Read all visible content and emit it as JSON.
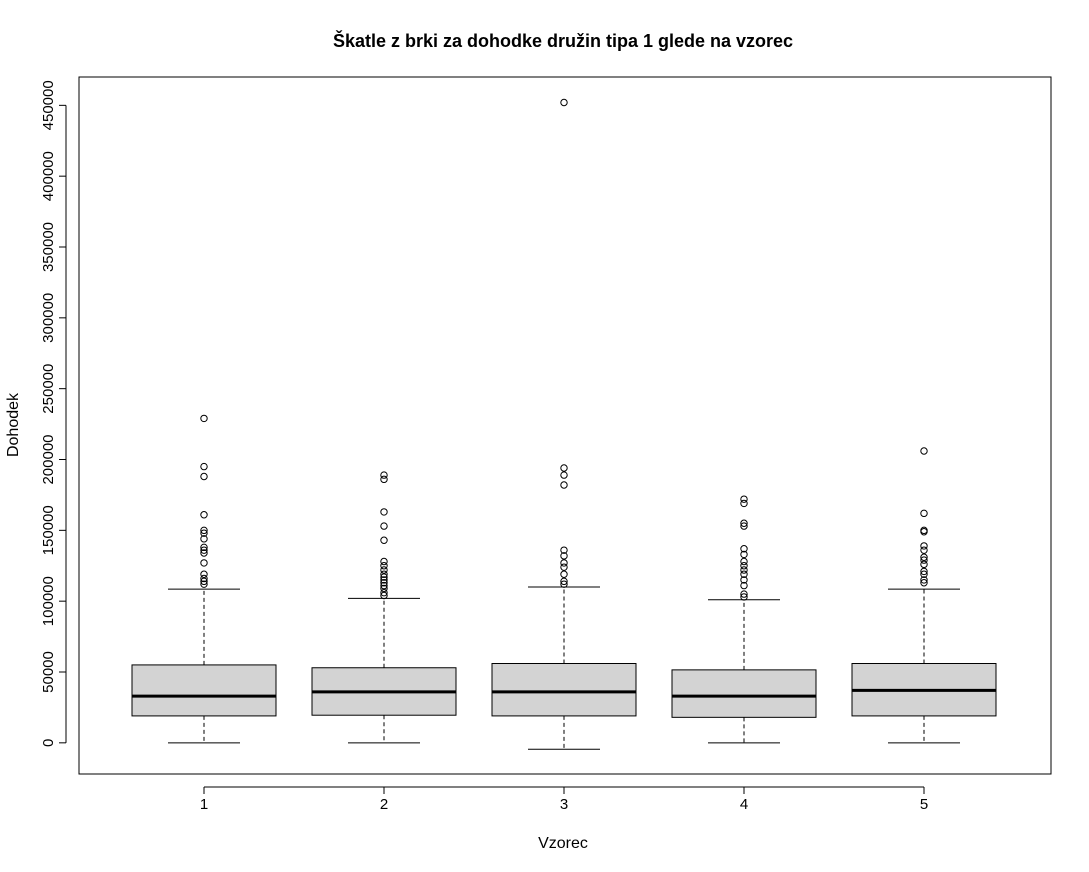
{
  "chart_data": {
    "type": "boxplot",
    "title": "Škatle z brki za dohodke družin tipa 1 glede na vzorec",
    "xlabel": "Vzorec",
    "ylabel": "Dohodek",
    "ylim": [
      -22000,
      470000
    ],
    "y_ticks": [
      "0",
      "50000",
      "100000",
      "150000",
      "200000",
      "250000",
      "300000",
      "350000",
      "400000",
      "450000"
    ],
    "categories": [
      "1",
      "2",
      "3",
      "4",
      "5"
    ],
    "box_color": "#d3d3d3",
    "boxes": [
      {
        "label": "1",
        "lower_whisker": 0,
        "q1": 19000,
        "median": 33000,
        "q3": 55000,
        "upper_whisker": 108500,
        "outliers": [
          229000,
          195000,
          188000,
          161000,
          150000,
          148000,
          144000,
          138000,
          136000,
          134000,
          127000,
          119000,
          116000,
          114000,
          112000
        ]
      },
      {
        "label": "2",
        "lower_whisker": 0,
        "q1": 19500,
        "median": 36000,
        "q3": 53000,
        "upper_whisker": 102000,
        "outliers": [
          189000,
          186000,
          163000,
          153000,
          143000,
          128000,
          125000,
          122000,
          119000,
          117000,
          115000,
          113000,
          111000,
          109000,
          106000,
          104000
        ]
      },
      {
        "label": "3",
        "lower_whisker": -4500,
        "q1": 19000,
        "median": 36000,
        "q3": 56000,
        "upper_whisker": 110000,
        "outliers": [
          452000,
          194000,
          189000,
          182000,
          136000,
          132000,
          127000,
          124000,
          119000,
          114000,
          112000
        ]
      },
      {
        "label": "4",
        "lower_whisker": 0,
        "q1": 18000,
        "median": 33000,
        "q3": 51500,
        "upper_whisker": 101000,
        "outliers": [
          172000,
          169000,
          155000,
          153000,
          137000,
          133000,
          128000,
          125000,
          122000,
          119000,
          115000,
          111000,
          105000,
          103000
        ]
      },
      {
        "label": "5",
        "lower_whisker": 0,
        "q1": 19000,
        "median": 37000,
        "q3": 56000,
        "upper_whisker": 108500,
        "outliers": [
          206000,
          162000,
          150000,
          149000,
          139000,
          136000,
          131000,
          129000,
          126000,
          121000,
          119000,
          115000,
          113000
        ]
      }
    ]
  }
}
